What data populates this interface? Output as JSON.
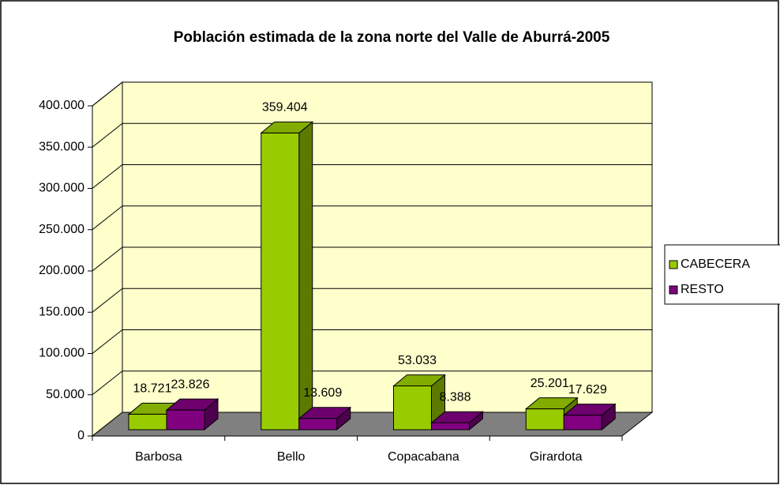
{
  "chart_data": {
    "type": "bar3d",
    "title": "Población estimada de la zona norte del Valle de Aburrá-2005",
    "categories": [
      "Barbosa",
      "Bello",
      "Copacabana",
      "Girardota"
    ],
    "series": [
      {
        "name": "CABECERA",
        "color": "#99cc00",
        "values": [
          18721,
          359404,
          53033,
          25201
        ],
        "value_labels": [
          "18.721",
          "359.404",
          "53.033",
          "25.201"
        ]
      },
      {
        "name": "RESTO",
        "color": "#800080",
        "values": [
          23826,
          13609,
          8388,
          17629
        ],
        "value_labels": [
          "23.826",
          "13.609",
          "8.388",
          "17.629"
        ]
      }
    ],
    "ylim": [
      0,
      400000
    ],
    "yticks": [
      0,
      {
        "value": 50000,
        "label": "50.000"
      },
      {
        "value": 100000,
        "label": "100.000"
      },
      {
        "value": 150000,
        "label": "150.000"
      },
      {
        "value": 200000,
        "label": "200.000"
      },
      {
        "value": 250000,
        "label": "250.000"
      },
      {
        "value": 300000,
        "label": "300.000"
      },
      {
        "value": 350000,
        "label": "350.000"
      },
      {
        "value": 400000,
        "label": "400.000"
      }
    ],
    "grid": true,
    "legend": "right",
    "wall_color": "#ffffcc",
    "floor_color": "#808080"
  }
}
